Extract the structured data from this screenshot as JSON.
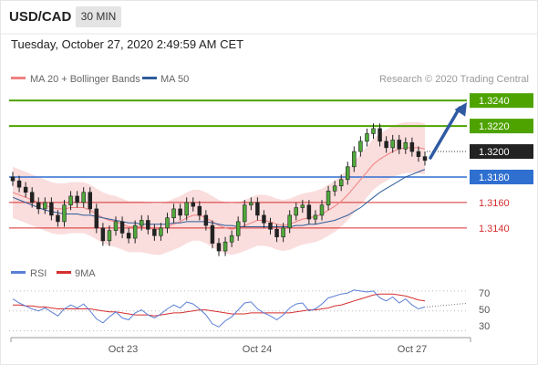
{
  "header": {
    "symbol": "USD/CAD",
    "timeframe": "30 MIN",
    "datetime": "Tuesday, October 27, 2020 2:49:59 AM CET"
  },
  "legend": {
    "items": [
      {
        "label": "MA 20 + Bollinger Bands",
        "color": "#f08080"
      },
      {
        "label": "MA 50",
        "color": "#2e5c9a"
      }
    ],
    "credit": "Research © 2020 Trading Central"
  },
  "levels": [
    {
      "value": 1.324,
      "label": "1.3240",
      "color": "#4ea300",
      "style": "solid-green",
      "badge": true
    },
    {
      "value": 1.322,
      "label": "1.3220",
      "color": "#4ea300",
      "style": "solid-green",
      "badge": true
    },
    {
      "value": 1.32,
      "label": "1.3200",
      "color": "#222222",
      "style": "dotted",
      "badge": true
    },
    {
      "value": 1.318,
      "label": "1.3180",
      "color": "#2f6fd0",
      "style": "solid-blue",
      "badge": true
    },
    {
      "value": 1.316,
      "label": "1.3160",
      "color": "#d62e2e",
      "style": "solid-red",
      "badge": false
    },
    {
      "value": 1.314,
      "label": "1.3140",
      "color": "#d62e2e",
      "style": "solid-red",
      "badge": false
    }
  ],
  "xaxis": {
    "labels": [
      "Oct 23",
      "Oct 24",
      "Oct 27"
    ]
  },
  "rsi": {
    "legend": [
      {
        "label": "RSI",
        "color": "#5b7fd6"
      },
      {
        "label": "9MA",
        "color": "#d62e2e"
      }
    ],
    "ticks": [
      "70",
      "50",
      "30"
    ]
  },
  "chart_data": [
    {
      "type": "candlestick",
      "title": "",
      "ylim": [
        1.3117,
        1.3253
      ],
      "close_series": [
        1.3177,
        1.3172,
        1.3168,
        1.316,
        1.3155,
        1.316,
        1.315,
        1.3145,
        1.3158,
        1.3165,
        1.316,
        1.3168,
        1.3155,
        1.314,
        1.313,
        1.3138,
        1.3145,
        1.3136,
        1.3132,
        1.3142,
        1.3146,
        1.3139,
        1.3134,
        1.314,
        1.3148,
        1.3155,
        1.315,
        1.316,
        1.3157,
        1.315,
        1.3142,
        1.3128,
        1.3122,
        1.3129,
        1.3134,
        1.3145,
        1.3158,
        1.316,
        1.315,
        1.3144,
        1.3139,
        1.3133,
        1.314,
        1.315,
        1.3156,
        1.3158,
        1.3147,
        1.315,
        1.3158,
        1.3169,
        1.3173,
        1.3178,
        1.3188,
        1.32,
        1.3208,
        1.3214,
        1.3218,
        1.3208,
        1.3203,
        1.3209,
        1.3202,
        1.3207,
        1.32,
        1.3196,
        1.3193
      ],
      "ma20_series": [
        1.3168,
        1.3166,
        1.3164,
        1.3162,
        1.316,
        1.3158,
        1.3156,
        1.3155,
        1.3155,
        1.3156,
        1.3156,
        1.3156,
        1.3154,
        1.3151,
        1.3148,
        1.3146,
        1.3145,
        1.3143,
        1.3141,
        1.3141,
        1.3141,
        1.314,
        1.3139,
        1.3139,
        1.3141,
        1.3143,
        1.3145,
        1.3148,
        1.315,
        1.315,
        1.3148,
        1.3145,
        1.3142,
        1.314,
        1.3139,
        1.314,
        1.3142,
        1.3144,
        1.3146,
        1.3146,
        1.3145,
        1.3143,
        1.3142,
        1.3143,
        1.3145,
        1.3147,
        1.3148,
        1.3149,
        1.3151,
        1.3154,
        1.3157,
        1.3161,
        1.3166,
        1.3172,
        1.3178,
        1.3184,
        1.319,
        1.3194,
        1.3197,
        1.32,
        1.3202,
        1.3203,
        1.3203,
        1.3203,
        1.3202
      ],
      "ma50_series": [
        1.3164,
        1.3162,
        1.316,
        1.3158,
        1.3156,
        1.3154,
        1.3153,
        1.3152,
        1.3151,
        1.3151,
        1.3151,
        1.315,
        1.315,
        1.3149,
        1.3148,
        1.3147,
        1.3146,
        1.3145,
        1.3144,
        1.3144,
        1.3143,
        1.3143,
        1.3143,
        1.3143,
        1.3143,
        1.3144,
        1.3144,
        1.3145,
        1.3145,
        1.3145,
        1.3145,
        1.3144,
        1.3143,
        1.3142,
        1.3142,
        1.3141,
        1.3141,
        1.3141,
        1.3141,
        1.3141,
        1.3141,
        1.3141,
        1.3141,
        1.3141,
        1.3142,
        1.3142,
        1.3143,
        1.3143,
        1.3144,
        1.3145,
        1.3146,
        1.3148,
        1.315,
        1.3153,
        1.3156,
        1.316,
        1.3164,
        1.3168,
        1.3171,
        1.3174,
        1.3177,
        1.318,
        1.3182,
        1.3184,
        1.3186
      ],
      "band_width": 0.002,
      "projection": {
        "from": 1.3195,
        "to": 1.324
      }
    },
    {
      "type": "line",
      "title": "",
      "ylim": [
        25,
        80
      ],
      "series": [
        {
          "name": "RSI",
          "values": [
            62,
            58,
            55,
            52,
            50,
            53,
            49,
            45,
            52,
            56,
            53,
            57,
            50,
            42,
            38,
            44,
            49,
            43,
            41,
            48,
            51,
            46,
            43,
            47,
            52,
            56,
            53,
            59,
            57,
            52,
            46,
            37,
            34,
            40,
            44,
            51,
            58,
            59,
            52,
            48,
            45,
            41,
            46,
            53,
            57,
            58,
            50,
            52,
            57,
            63,
            65,
            67,
            68,
            71,
            70,
            69,
            70,
            63,
            60,
            64,
            58,
            62,
            56,
            52,
            54
          ]
        },
        {
          "name": "9MA",
          "values": [
            56,
            56,
            55,
            55,
            54,
            54,
            53,
            52,
            52,
            52,
            52,
            52,
            52,
            51,
            50,
            49,
            49,
            48,
            47,
            46,
            46,
            46,
            45,
            46,
            47,
            48,
            48,
            49,
            50,
            51,
            51,
            50,
            49,
            48,
            47,
            47,
            47,
            48,
            48,
            48,
            48,
            48,
            48,
            48,
            49,
            50,
            51,
            51,
            52,
            53,
            55,
            56,
            58,
            60,
            62,
            64,
            66,
            67,
            67,
            67,
            66,
            65,
            63,
            61,
            60
          ]
        }
      ],
      "ticks": [
        70,
        50,
        30
      ]
    }
  ]
}
